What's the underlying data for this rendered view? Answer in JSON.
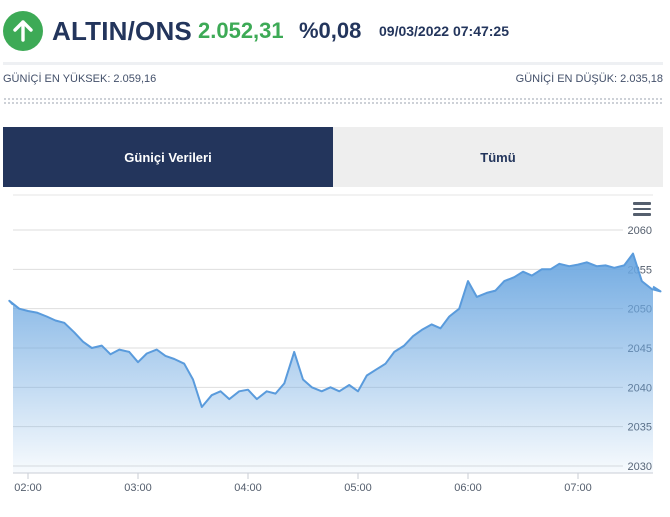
{
  "header": {
    "title": "ALTIN/ONS",
    "price": "2.052,31",
    "change": "%0,08",
    "datetime": "09/03/2022 07:47:25",
    "trend_icon": "arrow-up-icon",
    "accent_up": "#3daa56",
    "brand_navy": "#23355c"
  },
  "range": {
    "high_label": "GÜNİÇİ EN YÜKSEK: 2.059,16",
    "low_label": "GÜNİÇİ EN DÜŞÜK: 2.035,18"
  },
  "tabs": [
    {
      "label": "Güniçi Verileri",
      "active": true
    },
    {
      "label": "Tümü",
      "active": false
    }
  ],
  "chart_data": {
    "type": "area",
    "y_ticks": [
      "2060",
      "2055",
      "2050",
      "2045",
      "2040",
      "2035",
      "2030"
    ],
    "x_ticks": [
      "02:00",
      "03:00",
      "04:00",
      "05:00",
      "06:00",
      "07:00"
    ],
    "ylim": [
      2030,
      2062
    ],
    "grid": true,
    "menu_icon": "hamburger-menu-icon",
    "series_color": "#6aa6e0",
    "x": [
      1.75,
      1.83,
      1.92,
      2.0,
      2.08,
      2.17,
      2.25,
      2.33,
      2.42,
      2.5,
      2.58,
      2.67,
      2.75,
      2.83,
      2.92,
      3.0,
      3.08,
      3.17,
      3.25,
      3.33,
      3.42,
      3.5,
      3.58,
      3.67,
      3.75,
      3.83,
      3.92,
      4.0,
      4.08,
      4.17,
      4.25,
      4.33,
      4.42,
      4.5,
      4.58,
      4.67,
      4.75,
      4.83,
      4.92,
      5.0,
      5.08,
      5.17,
      5.25,
      5.33,
      5.42,
      5.5,
      5.58,
      5.67,
      5.75,
      5.83,
      5.92,
      6.0,
      6.08,
      6.17,
      6.25,
      6.33,
      6.42,
      6.5,
      6.58,
      6.67,
      6.75,
      6.83,
      6.92,
      7.0,
      7.08,
      7.17,
      7.25,
      7.33,
      7.42,
      7.5,
      7.58,
      7.67,
      7.75,
      7.83
    ],
    "values": [
      2050.5,
      2051,
      2050,
      2049.7,
      2049.5,
      2049,
      2048.5,
      2048.2,
      2047,
      2045.8,
      2045,
      2045.3,
      2044.2,
      2044.8,
      2044.5,
      2043.2,
      2044.3,
      2044.8,
      2044,
      2043.6,
      2043,
      2041,
      2037.5,
      2039,
      2039.5,
      2038.5,
      2039.5,
      2039.7,
      2038.5,
      2039.5,
      2039.2,
      2040.5,
      2044.5,
      2041,
      2040,
      2039.5,
      2040,
      2039.5,
      2040.3,
      2039.5,
      2041.5,
      2042.3,
      2043,
      2044.5,
      2045.3,
      2046.5,
      2047.3,
      2048,
      2047.5,
      2049,
      2050,
      2053.5,
      2051.5,
      2052,
      2052.3,
      2053.5,
      2054,
      2054.7,
      2054.2,
      2055,
      2055,
      2055.7,
      2055.4,
      2055.6,
      2055.9,
      2055.4,
      2055.5,
      2055.2,
      2055.5,
      2057,
      2053.5,
      2052.5,
      2052.2,
      2052.8
    ]
  }
}
